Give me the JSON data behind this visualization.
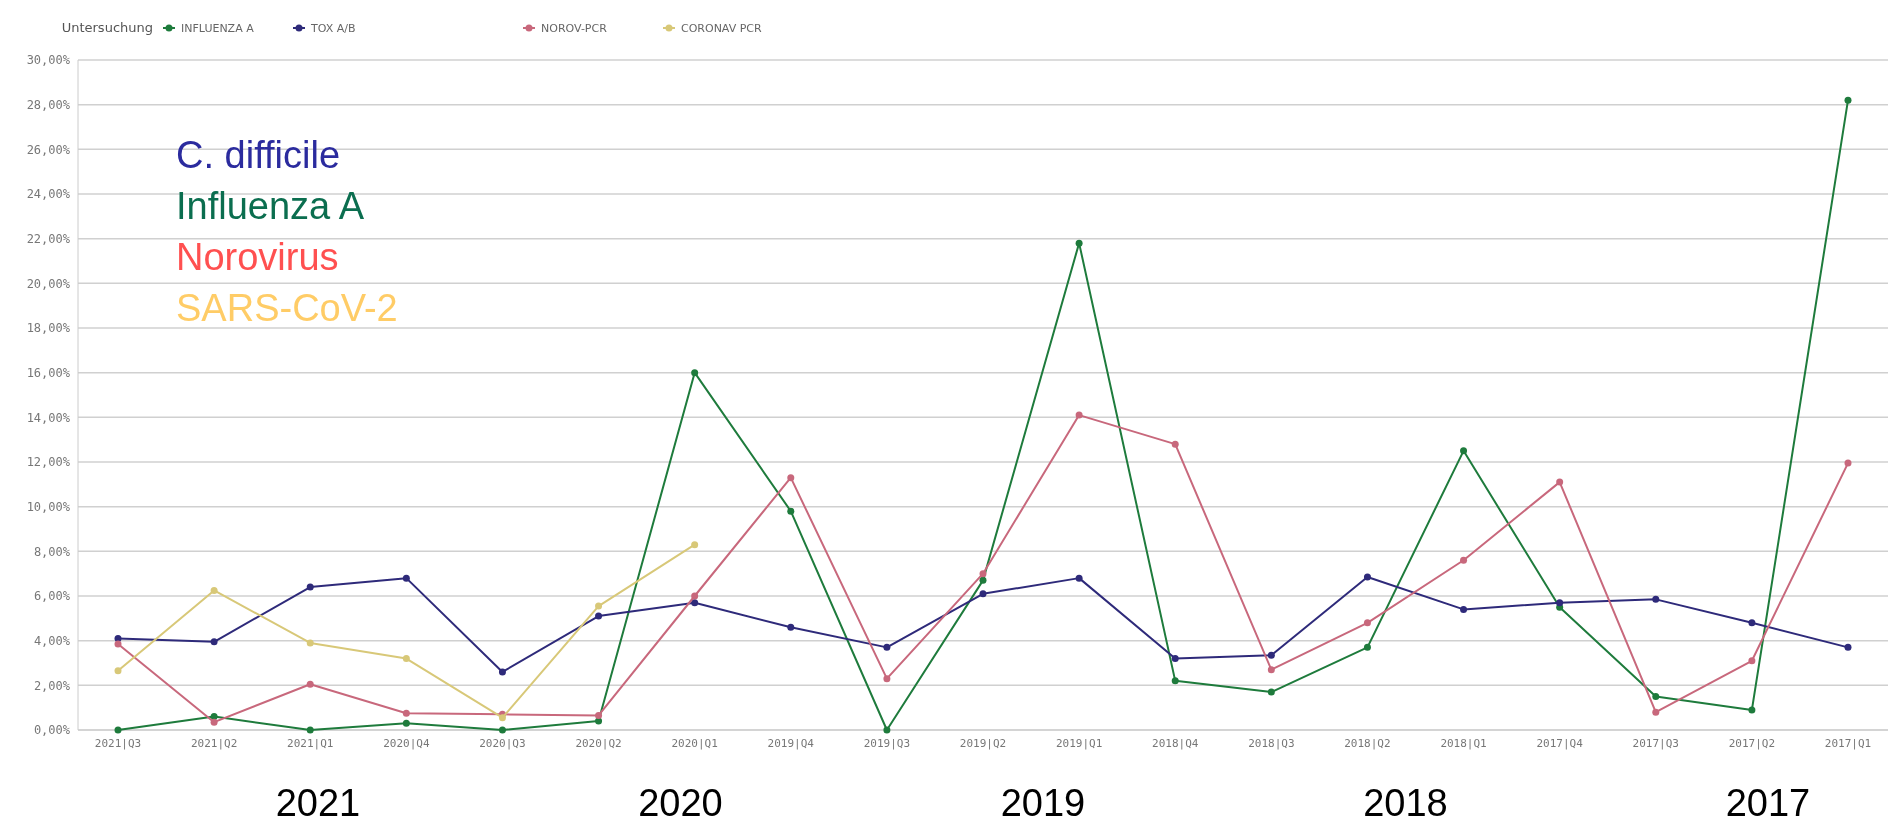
{
  "chart_data": {
    "type": "line",
    "legend_title": "Untersuchung",
    "categories": [
      "2021|Q3",
      "2021|Q2",
      "2021|Q1",
      "2020|Q4",
      "2020|Q3",
      "2020|Q2",
      "2020|Q1",
      "2019|Q4",
      "2019|Q3",
      "2019|Q2",
      "2019|Q1",
      "2018|Q4",
      "2018|Q3",
      "2018|Q2",
      "2018|Q1",
      "2017|Q4",
      "2017|Q3",
      "2017|Q2",
      "2017|Q1"
    ],
    "series": [
      {
        "name": "INFLUENZA A",
        "color": "#1e7b3c",
        "values": [
          0,
          0.6,
          0,
          0.3,
          0,
          0.4,
          16,
          9.8,
          0,
          6.7,
          21.8,
          2.2,
          1.7,
          3.7,
          12.5,
          5.5,
          1.5,
          0.9,
          28.2
        ]
      },
      {
        "name": "TOX A/B",
        "color": "#2e2a7a",
        "values": [
          4.1,
          3.95,
          6.4,
          6.8,
          2.6,
          5.1,
          5.7,
          4.6,
          3.7,
          6.1,
          6.8,
          3.2,
          3.35,
          6.85,
          5.4,
          5.7,
          5.85,
          4.8,
          3.7
        ]
      },
      {
        "name": "NOROV-PCR",
        "color": "#c8687c",
        "values": [
          3.85,
          0.35,
          2.05,
          0.75,
          0.7,
          0.65,
          6.0,
          11.3,
          2.3,
          7.0,
          14.1,
          12.8,
          2.7,
          4.8,
          7.6,
          11.1,
          0.8,
          3.1,
          11.95
        ]
      },
      {
        "name": "CORONAV PCR",
        "color": "#d8c878",
        "values": [
          2.65,
          6.25,
          3.9,
          3.2,
          0.55,
          5.55,
          8.3,
          null,
          null,
          null,
          null,
          null,
          null,
          null,
          null,
          null,
          null,
          null,
          null
        ]
      }
    ],
    "ylim": [
      0,
      30
    ],
    "yticks": [
      {
        "value": 0,
        "label": "0,00%"
      },
      {
        "value": 2,
        "label": "2,00%"
      },
      {
        "value": 4,
        "label": "4,00%"
      },
      {
        "value": 6,
        "label": "6,00%"
      },
      {
        "value": 8,
        "label": "8,00%"
      },
      {
        "value": 10,
        "label": "10,00%"
      },
      {
        "value": 12,
        "label": "12,00%"
      },
      {
        "value": 14,
        "label": "14,00%"
      },
      {
        "value": 16,
        "label": "16,00%"
      },
      {
        "value": 18,
        "label": "18,00%"
      },
      {
        "value": 20,
        "label": "20,00%"
      },
      {
        "value": 22,
        "label": "22,00%"
      },
      {
        "value": 24,
        "label": "24,00%"
      },
      {
        "value": 26,
        "label": "26,00%"
      },
      {
        "value": 28,
        "label": "28,00%"
      },
      {
        "value": 30,
        "label": "30,00%"
      }
    ],
    "grid": "y",
    "legend": "top left",
    "marker": "circle",
    "line_style": "solid",
    "annotations": [
      "C. difficile",
      "Influenza A",
      "Norovirus",
      "SARS-CoV-2",
      "2021",
      "2020",
      "2019",
      "2018",
      "2017"
    ]
  }
}
